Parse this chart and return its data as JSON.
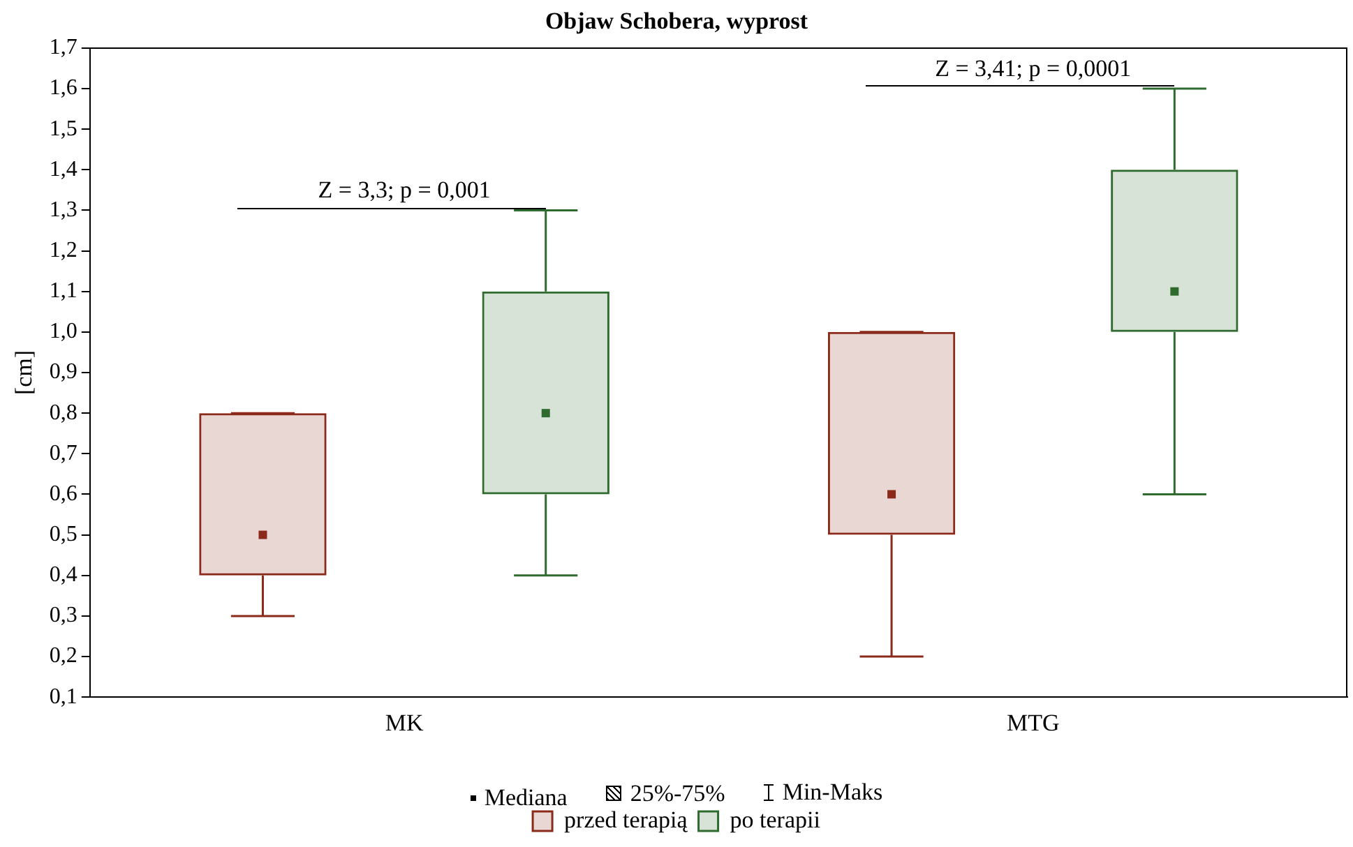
{
  "chart_data": {
    "type": "box",
    "title": "Objaw Schobera, wyprost",
    "ylabel": "[cm]",
    "categories": [
      "MK",
      "MTG"
    ],
    "series": [
      {
        "name": "przed terapią",
        "color": "#8b2a1a",
        "boxes": [
          {
            "low": 0.3,
            "q1": 0.4,
            "median": 0.5,
            "q3": 0.8,
            "high": 0.8
          },
          {
            "low": 0.2,
            "q1": 0.5,
            "median": 0.6,
            "q3": 1.0,
            "high": 1.0
          }
        ]
      },
      {
        "name": "po terapii",
        "color": "#2f6b2f",
        "boxes": [
          {
            "low": 0.4,
            "q1": 0.6,
            "median": 0.8,
            "q3": 1.1,
            "high": 1.3
          },
          {
            "low": 0.6,
            "q1": 1.0,
            "median": 1.1,
            "q3": 1.4,
            "high": 1.6
          }
        ]
      }
    ],
    "ylim": [
      0.1,
      1.7
    ],
    "yticks": [
      {
        "value": 0.1,
        "label": "0,1"
      },
      {
        "value": 0.2,
        "label": "0,2"
      },
      {
        "value": 0.3,
        "label": "0,3"
      },
      {
        "value": 0.4,
        "label": "0,4"
      },
      {
        "value": 0.5,
        "label": "0,5"
      },
      {
        "value": 0.6,
        "label": "0,6"
      },
      {
        "value": 0.7,
        "label": "0,7"
      },
      {
        "value": 0.8,
        "label": "0,8"
      },
      {
        "value": 0.9,
        "label": "0,9"
      },
      {
        "value": 1.0,
        "label": "1,0"
      },
      {
        "value": 1.1,
        "label": "1,1"
      },
      {
        "value": 1.2,
        "label": "1,2"
      },
      {
        "value": 1.3,
        "label": "1,3"
      },
      {
        "value": 1.4,
        "label": "1,4"
      },
      {
        "value": 1.5,
        "label": "1,5"
      },
      {
        "value": 1.6,
        "label": "1,6"
      },
      {
        "value": 1.7,
        "label": "1,7"
      }
    ],
    "annotations": [
      "Z = 3,3; p = 0,001",
      "Z = 3,41; p = 0,0001",
      "Mediana",
      "25%-75%",
      "Min-Maks"
    ],
    "marker": "square",
    "legend": "bottom",
    "grid": false
  }
}
